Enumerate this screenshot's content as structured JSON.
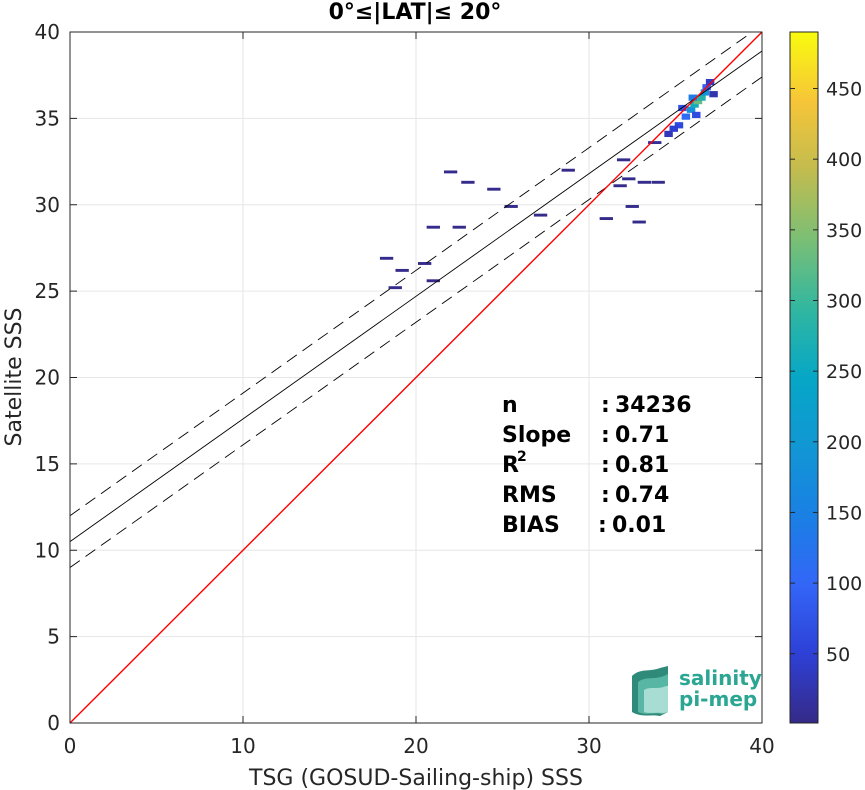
{
  "chart_data": {
    "type": "scatter",
    "title": "0°≤|LAT|≤ 20°",
    "xlabel": "TSG (GOSUD-Sailing-ship) SSS",
    "ylabel": "Satellite SSS",
    "xlim": [
      0,
      40
    ],
    "ylim": [
      0,
      40
    ],
    "xticks": [
      "0",
      "10",
      "20",
      "30",
      "40"
    ],
    "yticks": [
      "0",
      "5",
      "10",
      "15",
      "20",
      "25",
      "30",
      "35",
      "40"
    ],
    "grid": true,
    "identity_line": {
      "slope": 1,
      "intercept": 0,
      "color": "#ff0000"
    },
    "fit_line": {
      "slope": 0.71,
      "intercept": 10.5,
      "color": "#000000"
    },
    "fit_bounds": [
      {
        "slope": 0.71,
        "intercept": 12.0
      },
      {
        "slope": 0.71,
        "intercept": 9.0
      }
    ],
    "colorbar": {
      "min": 1,
      "max": 490,
      "ticks": [
        "50",
        "100",
        "150",
        "200",
        "250",
        "300",
        "350",
        "400",
        "450"
      ],
      "tick_values": [
        50,
        100,
        150,
        200,
        250,
        300,
        350,
        400,
        450
      ],
      "colormap": "parula"
    },
    "density_points": [
      {
        "x": 35.2,
        "y": 34.6,
        "count": 60
      },
      {
        "x": 35.6,
        "y": 35.1,
        "count": 110
      },
      {
        "x": 35.9,
        "y": 35.5,
        "count": 180
      },
      {
        "x": 36.1,
        "y": 35.8,
        "count": 260
      },
      {
        "x": 36.3,
        "y": 36.0,
        "count": 330
      },
      {
        "x": 36.5,
        "y": 36.2,
        "count": 280
      },
      {
        "x": 36.7,
        "y": 36.5,
        "count": 190
      },
      {
        "x": 36.0,
        "y": 36.2,
        "count": 140
      },
      {
        "x": 36.8,
        "y": 36.8,
        "count": 90
      },
      {
        "x": 37.0,
        "y": 37.1,
        "count": 40
      },
      {
        "x": 34.6,
        "y": 34.1,
        "count": 30
      },
      {
        "x": 34.9,
        "y": 34.4,
        "count": 45
      },
      {
        "x": 35.4,
        "y": 35.6,
        "count": 70
      },
      {
        "x": 36.2,
        "y": 35.2,
        "count": 65
      },
      {
        "x": 37.2,
        "y": 36.4,
        "count": 25
      },
      {
        "x": 33.8,
        "y": 33.6,
        "count": 10
      },
      {
        "x": 32.0,
        "y": 32.6,
        "count": 5
      },
      {
        "x": 32.3,
        "y": 31.5,
        "count": 5
      },
      {
        "x": 31.8,
        "y": 31.1,
        "count": 4
      },
      {
        "x": 33.2,
        "y": 31.3,
        "count": 4
      },
      {
        "x": 34.0,
        "y": 31.3,
        "count": 3
      },
      {
        "x": 32.5,
        "y": 29.9,
        "count": 4
      },
      {
        "x": 32.9,
        "y": 29.0,
        "count": 3
      },
      {
        "x": 31.0,
        "y": 29.2,
        "count": 3
      },
      {
        "x": 22.0,
        "y": 31.9,
        "count": 5
      },
      {
        "x": 23.0,
        "y": 31.3,
        "count": 4
      },
      {
        "x": 24.5,
        "y": 30.9,
        "count": 4
      },
      {
        "x": 25.5,
        "y": 29.9,
        "count": 3
      },
      {
        "x": 27.2,
        "y": 29.4,
        "count": 3
      },
      {
        "x": 21.0,
        "y": 28.7,
        "count": 4
      },
      {
        "x": 22.5,
        "y": 28.7,
        "count": 3
      },
      {
        "x": 18.3,
        "y": 26.9,
        "count": 5
      },
      {
        "x": 19.2,
        "y": 26.2,
        "count": 3
      },
      {
        "x": 20.5,
        "y": 26.6,
        "count": 3
      },
      {
        "x": 18.8,
        "y": 25.2,
        "count": 3
      },
      {
        "x": 21.0,
        "y": 25.6,
        "count": 2
      },
      {
        "x": 28.8,
        "y": 32.0,
        "count": 2
      }
    ]
  },
  "stats": [
    {
      "label": "n",
      "sep": ":",
      "value": "34236"
    },
    {
      "label": "Slope",
      "sep": ":",
      "value": "0.71"
    },
    {
      "label": "R",
      "sup": "2",
      "sep": ":",
      "value": "0.81"
    },
    {
      "label": "RMS",
      "sep": ":",
      "value": "0.74"
    },
    {
      "label": "BIAS",
      "sep": ":",
      "value": "0.01"
    }
  ],
  "logo": {
    "line1": "salinity",
    "line2": "pi-mep"
  }
}
